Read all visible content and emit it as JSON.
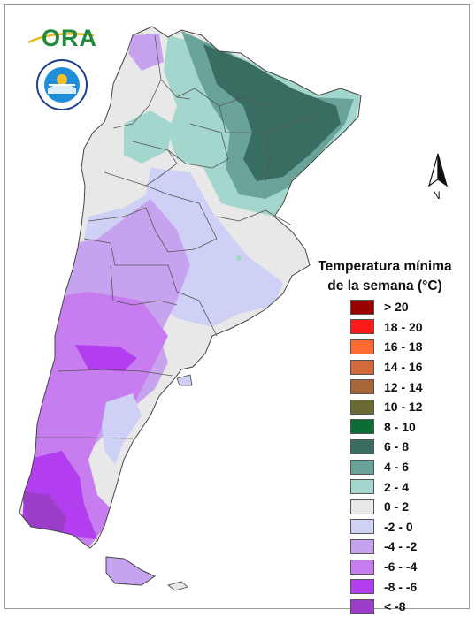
{
  "logo": {
    "text": "ORA",
    "brand_color": "#1f8a3c",
    "accent_color": "#e8b920"
  },
  "seal": {
    "text": "SERVICIO METEOROLÓGICO NACIONAL · ARGENTINA",
    "icon": "smn-seal-icon"
  },
  "north_arrow": {
    "label": "N"
  },
  "legend": {
    "title_line1": "Temperatura mínima",
    "title_line2": "de la semana (°C)",
    "items": [
      {
        "label": "> 20",
        "color": "#9b0000"
      },
      {
        "label": "18 - 20",
        "color": "#ff1a1a"
      },
      {
        "label": "16 - 18",
        "color": "#ff6a33"
      },
      {
        "label": "14 - 16",
        "color": "#d46a3c"
      },
      {
        "label": "12 - 14",
        "color": "#a8673a"
      },
      {
        "label": "10 - 12",
        "color": "#6b6a33"
      },
      {
        "label": "8 - 10",
        "color": "#0d6b36"
      },
      {
        "label": "6 - 8",
        "color": "#3a6d62"
      },
      {
        "label": "4 - 6",
        "color": "#6aa39a"
      },
      {
        "label": "2 - 4",
        "color": "#a3d6cc"
      },
      {
        "label": "0 - 2",
        "color": "#e8e8e8"
      },
      {
        "label": "-2 - 0",
        "color": "#cfd0f5"
      },
      {
        "label": "-4 - -2",
        "color": "#c7a3ef"
      },
      {
        "label": "-6 - -4",
        "color": "#c77df0"
      },
      {
        "label": "-8 - -6",
        "color": "#b23ef0"
      },
      {
        "label": "< -8",
        "color": "#9a3ec9"
      }
    ]
  }
}
